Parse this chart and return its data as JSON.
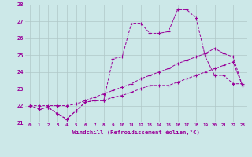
{
  "xlabel": "Windchill (Refroidissement éolien,°C)",
  "bg_color": "#cce8e8",
  "grid_color": "#b0c8c8",
  "line_color": "#990099",
  "xlim": [
    -0.5,
    23.5
  ],
  "ylim": [
    21,
    28
  ],
  "xticks": [
    0,
    1,
    2,
    3,
    4,
    5,
    6,
    7,
    8,
    9,
    10,
    11,
    12,
    13,
    14,
    15,
    16,
    17,
    18,
    19,
    20,
    21,
    22,
    23
  ],
  "yticks": [
    21,
    22,
    23,
    24,
    25,
    26,
    27,
    28
  ],
  "series": [
    [
      22.0,
      21.8,
      21.9,
      21.5,
      21.2,
      21.7,
      22.2,
      22.3,
      22.3,
      24.8,
      24.9,
      26.9,
      26.9,
      26.3,
      26.3,
      26.4,
      27.7,
      27.7,
      27.2,
      24.9,
      23.8,
      23.8,
      23.3,
      23.3
    ],
    [
      22.0,
      22.0,
      22.0,
      22.0,
      22.0,
      22.1,
      22.3,
      22.5,
      22.7,
      22.9,
      23.1,
      23.3,
      23.6,
      23.8,
      24.0,
      24.2,
      24.5,
      24.7,
      24.9,
      25.1,
      25.4,
      25.1,
      24.9,
      23.2
    ],
    [
      22.0,
      21.8,
      21.9,
      21.5,
      21.2,
      21.7,
      22.2,
      22.3,
      22.3,
      22.5,
      22.6,
      22.8,
      23.0,
      23.2,
      23.2,
      23.2,
      23.4,
      23.6,
      23.8,
      24.0,
      24.2,
      24.4,
      24.6,
      23.2
    ]
  ]
}
